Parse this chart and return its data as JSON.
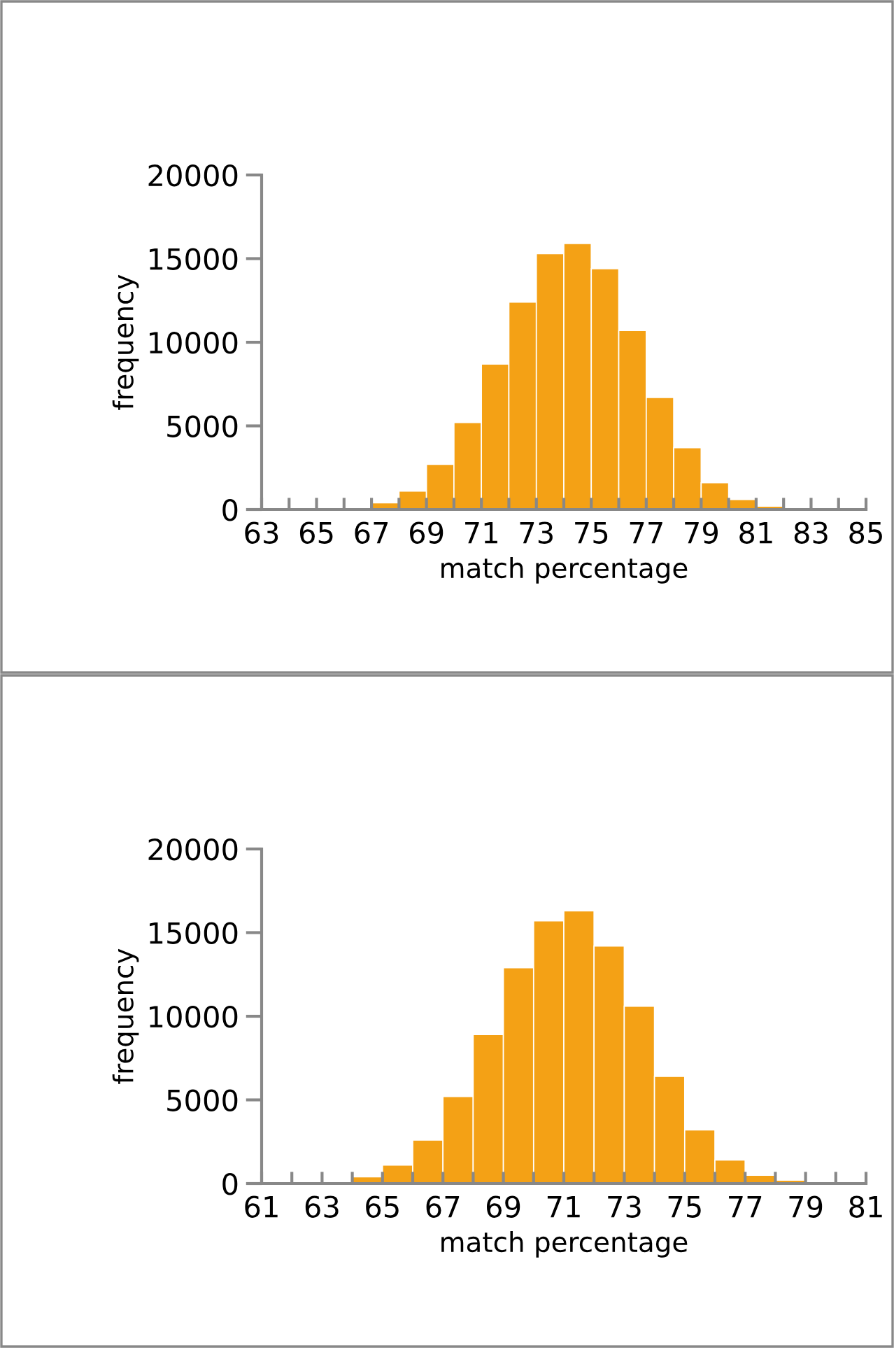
{
  "chart_data": [
    {
      "type": "histogram",
      "xlabel": "match percentage",
      "ylabel": "frequency",
      "color": "#f4a115",
      "bins": [
        63,
        64,
        65,
        66,
        67,
        68,
        69,
        70,
        71,
        72,
        73,
        74,
        75,
        76,
        77,
        78,
        79,
        80,
        81,
        82,
        83,
        84,
        85
      ],
      "values": [
        0,
        0,
        0,
        100,
        400,
        1100,
        2700,
        5200,
        8700,
        12400,
        15300,
        15900,
        14400,
        10700,
        6700,
        3700,
        1600,
        600,
        200,
        0,
        0,
        0
      ],
      "xlim": [
        63,
        85
      ],
      "ylim": [
        0,
        20000
      ],
      "yticks": [
        0,
        5000,
        10000,
        15000,
        20000
      ],
      "xticks": [
        63,
        {
          "value": 64,
          "label": null
        },
        65,
        {
          "value": 66,
          "label": null
        },
        67,
        {
          "value": 68,
          "label": null
        },
        69,
        {
          "value": 70,
          "label": null
        },
        71,
        {
          "value": 72,
          "label": null
        },
        73,
        {
          "value": 74,
          "label": null
        },
        75,
        {
          "value": 76,
          "label": null
        },
        77,
        {
          "value": 78,
          "label": null
        },
        79,
        {
          "value": 80,
          "label": null
        },
        81,
        {
          "value": 82,
          "label": null
        },
        83,
        {
          "value": 84,
          "label": null
        },
        85
      ],
      "grid": false,
      "legend": false
    },
    {
      "type": "histogram",
      "xlabel": "match percentage",
      "ylabel": "frequency",
      "color": "#f4a115",
      "bins": [
        61,
        62,
        63,
        64,
        65,
        66,
        67,
        68,
        69,
        70,
        71,
        72,
        73,
        74,
        75,
        76,
        77,
        78,
        79,
        80,
        81
      ],
      "values": [
        0,
        0,
        100,
        400,
        1100,
        2600,
        5200,
        8900,
        12900,
        15700,
        16300,
        14200,
        10600,
        6400,
        3200,
        1400,
        500,
        200,
        0,
        0
      ],
      "xlim": [
        61,
        81
      ],
      "ylim": [
        0,
        20000
      ],
      "yticks": [
        0,
        5000,
        10000,
        15000,
        20000
      ],
      "xticks": [
        61,
        {
          "value": 62,
          "label": null
        },
        63,
        {
          "value": 64,
          "label": null
        },
        65,
        {
          "value": 66,
          "label": null
        },
        67,
        {
          "value": 68,
          "label": null
        },
        69,
        {
          "value": 70,
          "label": null
        },
        71,
        {
          "value": 72,
          "label": null
        },
        73,
        {
          "value": 74,
          "label": null
        },
        75,
        {
          "value": 76,
          "label": null
        },
        77,
        {
          "value": 78,
          "label": null
        },
        79,
        {
          "value": 80,
          "label": null
        },
        81
      ],
      "grid": false,
      "legend": false
    }
  ]
}
